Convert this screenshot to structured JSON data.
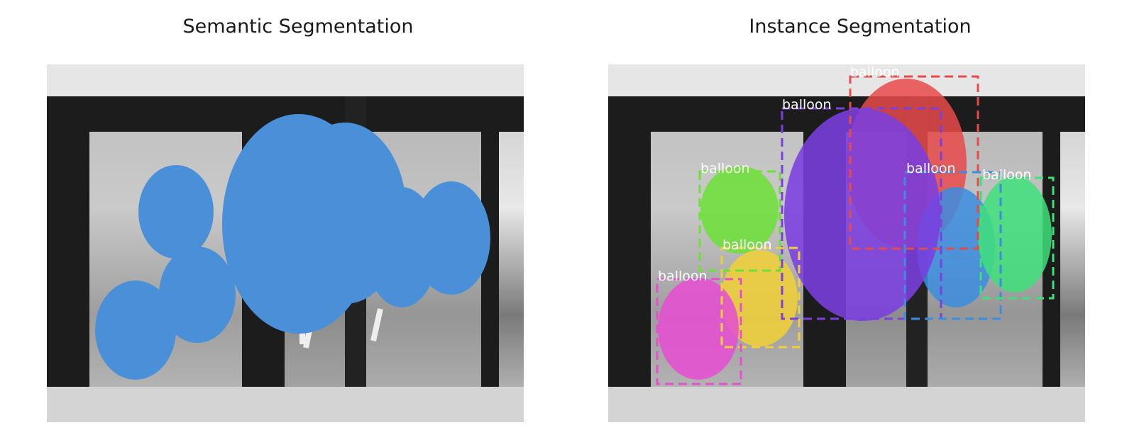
{
  "figure": {
    "left_panel": {
      "title": "Semantic Segmentation",
      "mask_color": "#4a90d9"
    },
    "right_panel": {
      "title": "Instance Segmentation",
      "instances": [
        {
          "label": "balloon",
          "color": "#e84a4a"
        },
        {
          "label": "balloon",
          "color": "#7b3fe0"
        },
        {
          "label": "balloon",
          "color": "#3a8de0"
        },
        {
          "label": "balloon",
          "color": "#3ee07a"
        },
        {
          "label": "balloon",
          "color": "#6ee03a"
        },
        {
          "label": "balloon",
          "color": "#f0d03a"
        },
        {
          "label": "balloon",
          "color": "#e64fd0"
        }
      ]
    }
  }
}
